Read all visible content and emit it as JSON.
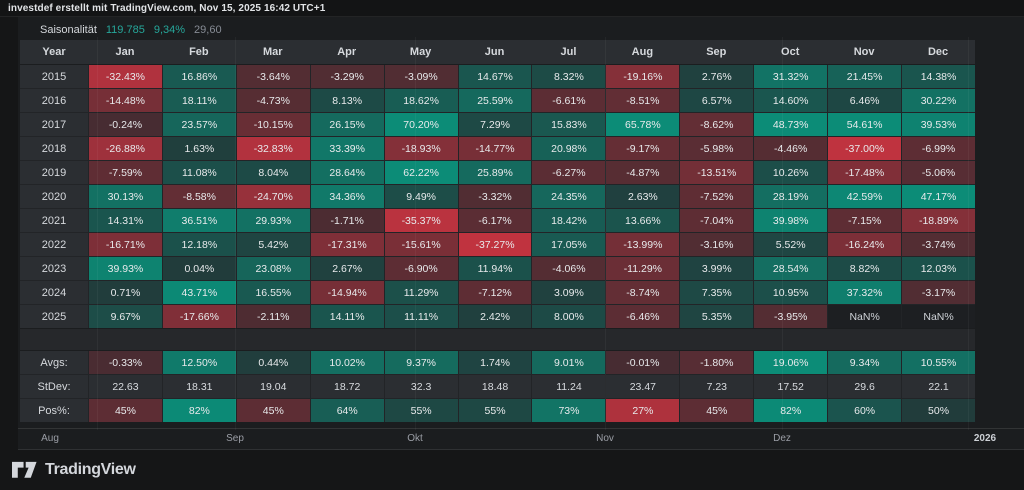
{
  "ui": {
    "topbar_text": "investdef erstellt mit TradingView.com, Nov 15, 2025 16:42 UTC+1",
    "legend": {
      "title": "Saisonalität",
      "values": [
        "119.785",
        "9,34%",
        "29,60"
      ]
    },
    "time_axis": [
      "Aug",
      "Sep",
      "Okt",
      "Nov",
      "Dez",
      "2026"
    ],
    "footer": {
      "brand": "TradingView"
    }
  },
  "chart_data": {
    "type": "heatmap",
    "title": "Saisonalität",
    "row_header": "Year",
    "columns": [
      "Jan",
      "Feb",
      "Mar",
      "Apr",
      "May",
      "Jun",
      "Jul",
      "Aug",
      "Sep",
      "Oct",
      "Nov",
      "Dec"
    ],
    "rows": [
      {
        "label": "2015",
        "values": [
          -32.43,
          16.86,
          -3.64,
          -3.29,
          -3.09,
          14.67,
          8.32,
          -19.16,
          2.76,
          31.32,
          21.45,
          14.38
        ]
      },
      {
        "label": "2016",
        "values": [
          -14.48,
          18.11,
          -4.73,
          8.13,
          18.62,
          25.59,
          -6.61,
          -8.51,
          6.57,
          14.6,
          6.46,
          30.22
        ]
      },
      {
        "label": "2017",
        "values": [
          -0.24,
          23.57,
          -10.15,
          26.15,
          70.2,
          7.29,
          15.83,
          65.78,
          -8.62,
          48.73,
          54.61,
          39.53
        ]
      },
      {
        "label": "2018",
        "values": [
          -26.88,
          1.63,
          -32.83,
          33.39,
          -18.93,
          -14.77,
          20.98,
          -9.17,
          -5.98,
          -4.46,
          -37.0,
          -6.99
        ]
      },
      {
        "label": "2019",
        "values": [
          -7.59,
          11.08,
          8.04,
          28.64,
          62.22,
          25.89,
          -6.27,
          -4.87,
          -13.51,
          10.26,
          -17.48,
          -5.06
        ]
      },
      {
        "label": "2020",
        "values": [
          30.13,
          -8.58,
          -24.7,
          34.36,
          9.49,
          -3.32,
          24.35,
          2.63,
          -7.52,
          28.19,
          42.59,
          47.17
        ]
      },
      {
        "label": "2021",
        "values": [
          14.31,
          36.51,
          29.93,
          -1.71,
          -35.37,
          -6.17,
          18.42,
          13.66,
          -7.04,
          39.98,
          -7.15,
          -18.89
        ]
      },
      {
        "label": "2022",
        "values": [
          -16.71,
          12.18,
          5.42,
          -17.31,
          -15.61,
          -37.27,
          17.05,
          -13.99,
          -3.16,
          5.52,
          -16.24,
          -3.74
        ]
      },
      {
        "label": "2023",
        "values": [
          39.93,
          0.04,
          23.08,
          2.67,
          -6.9,
          11.94,
          -4.06,
          -11.29,
          3.99,
          28.54,
          8.82,
          12.03
        ]
      },
      {
        "label": "2024",
        "values": [
          0.71,
          43.71,
          16.55,
          -14.94,
          11.29,
          -7.12,
          3.09,
          -8.74,
          7.35,
          10.95,
          37.32,
          -3.17
        ]
      },
      {
        "label": "2025",
        "values": [
          9.67,
          -17.66,
          -2.11,
          14.11,
          11.11,
          2.42,
          8.0,
          -6.46,
          5.35,
          -3.95,
          null,
          null
        ]
      }
    ],
    "nan_display": "NaN%",
    "summary": {
      "avgs_label": "Avgs:",
      "avgs": [
        -0.33,
        12.5,
        0.44,
        10.02,
        9.37,
        1.74,
        9.01,
        -0.01,
        -1.8,
        19.06,
        9.34,
        10.55
      ],
      "stdev_label": "StDev:",
      "stdev": [
        "22.63",
        "18.31",
        "19.04",
        "18.72",
        "32.3",
        "18.48",
        "11.24",
        "23.47",
        "7.23",
        "17.52",
        "29.6",
        "22.1"
      ],
      "pos_label": "Pos%:",
      "pos_pct": [
        45,
        82,
        45,
        64,
        55,
        55,
        73,
        27,
        45,
        82,
        60,
        50
      ]
    },
    "colors": {
      "positive": "#089981",
      "negative": "#f23645",
      "blend_bg": "#262a2e",
      "nan_bg": "#1d1f22"
    }
  }
}
